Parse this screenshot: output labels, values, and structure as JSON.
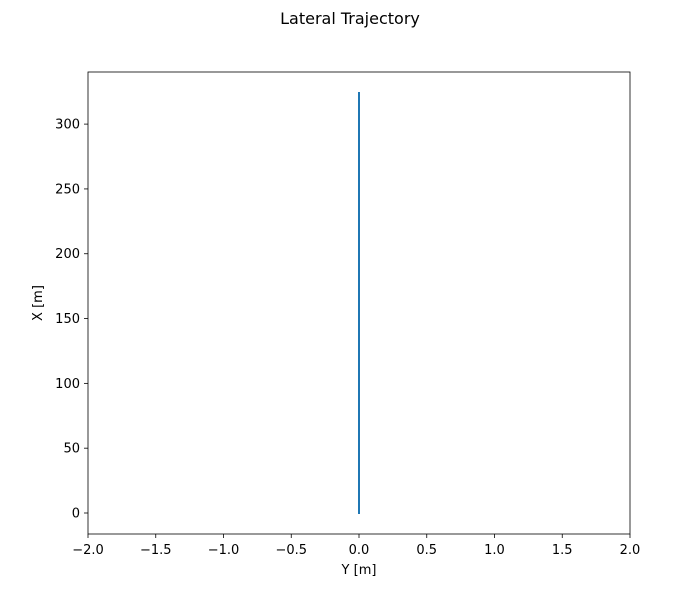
{
  "chart_data": {
    "type": "line",
    "title": "Lateral Trajectory",
    "xlabel": "Y [m]",
    "ylabel": "X [m]",
    "xlim": [
      -2.0,
      2.0
    ],
    "ylim": [
      -16.2,
      340.2
    ],
    "xticks": [
      -2.0,
      -1.5,
      -1.0,
      -0.5,
      0.0,
      0.5,
      1.0,
      1.5,
      2.0
    ],
    "xtick_labels": [
      "−2.0",
      "−1.5",
      "−1.0",
      "−0.5",
      "0.0",
      "0.5",
      "1.0",
      "1.5",
      "2.0"
    ],
    "yticks": [
      0,
      50,
      100,
      150,
      200,
      250,
      300
    ],
    "ytick_labels": [
      "0",
      "50",
      "100",
      "150",
      "200",
      "250",
      "300"
    ],
    "grid": false,
    "series": [
      {
        "color": "#1f77b4",
        "x": [
          0.0,
          0.0
        ],
        "y": [
          0.0,
          324.0
        ]
      }
    ]
  }
}
